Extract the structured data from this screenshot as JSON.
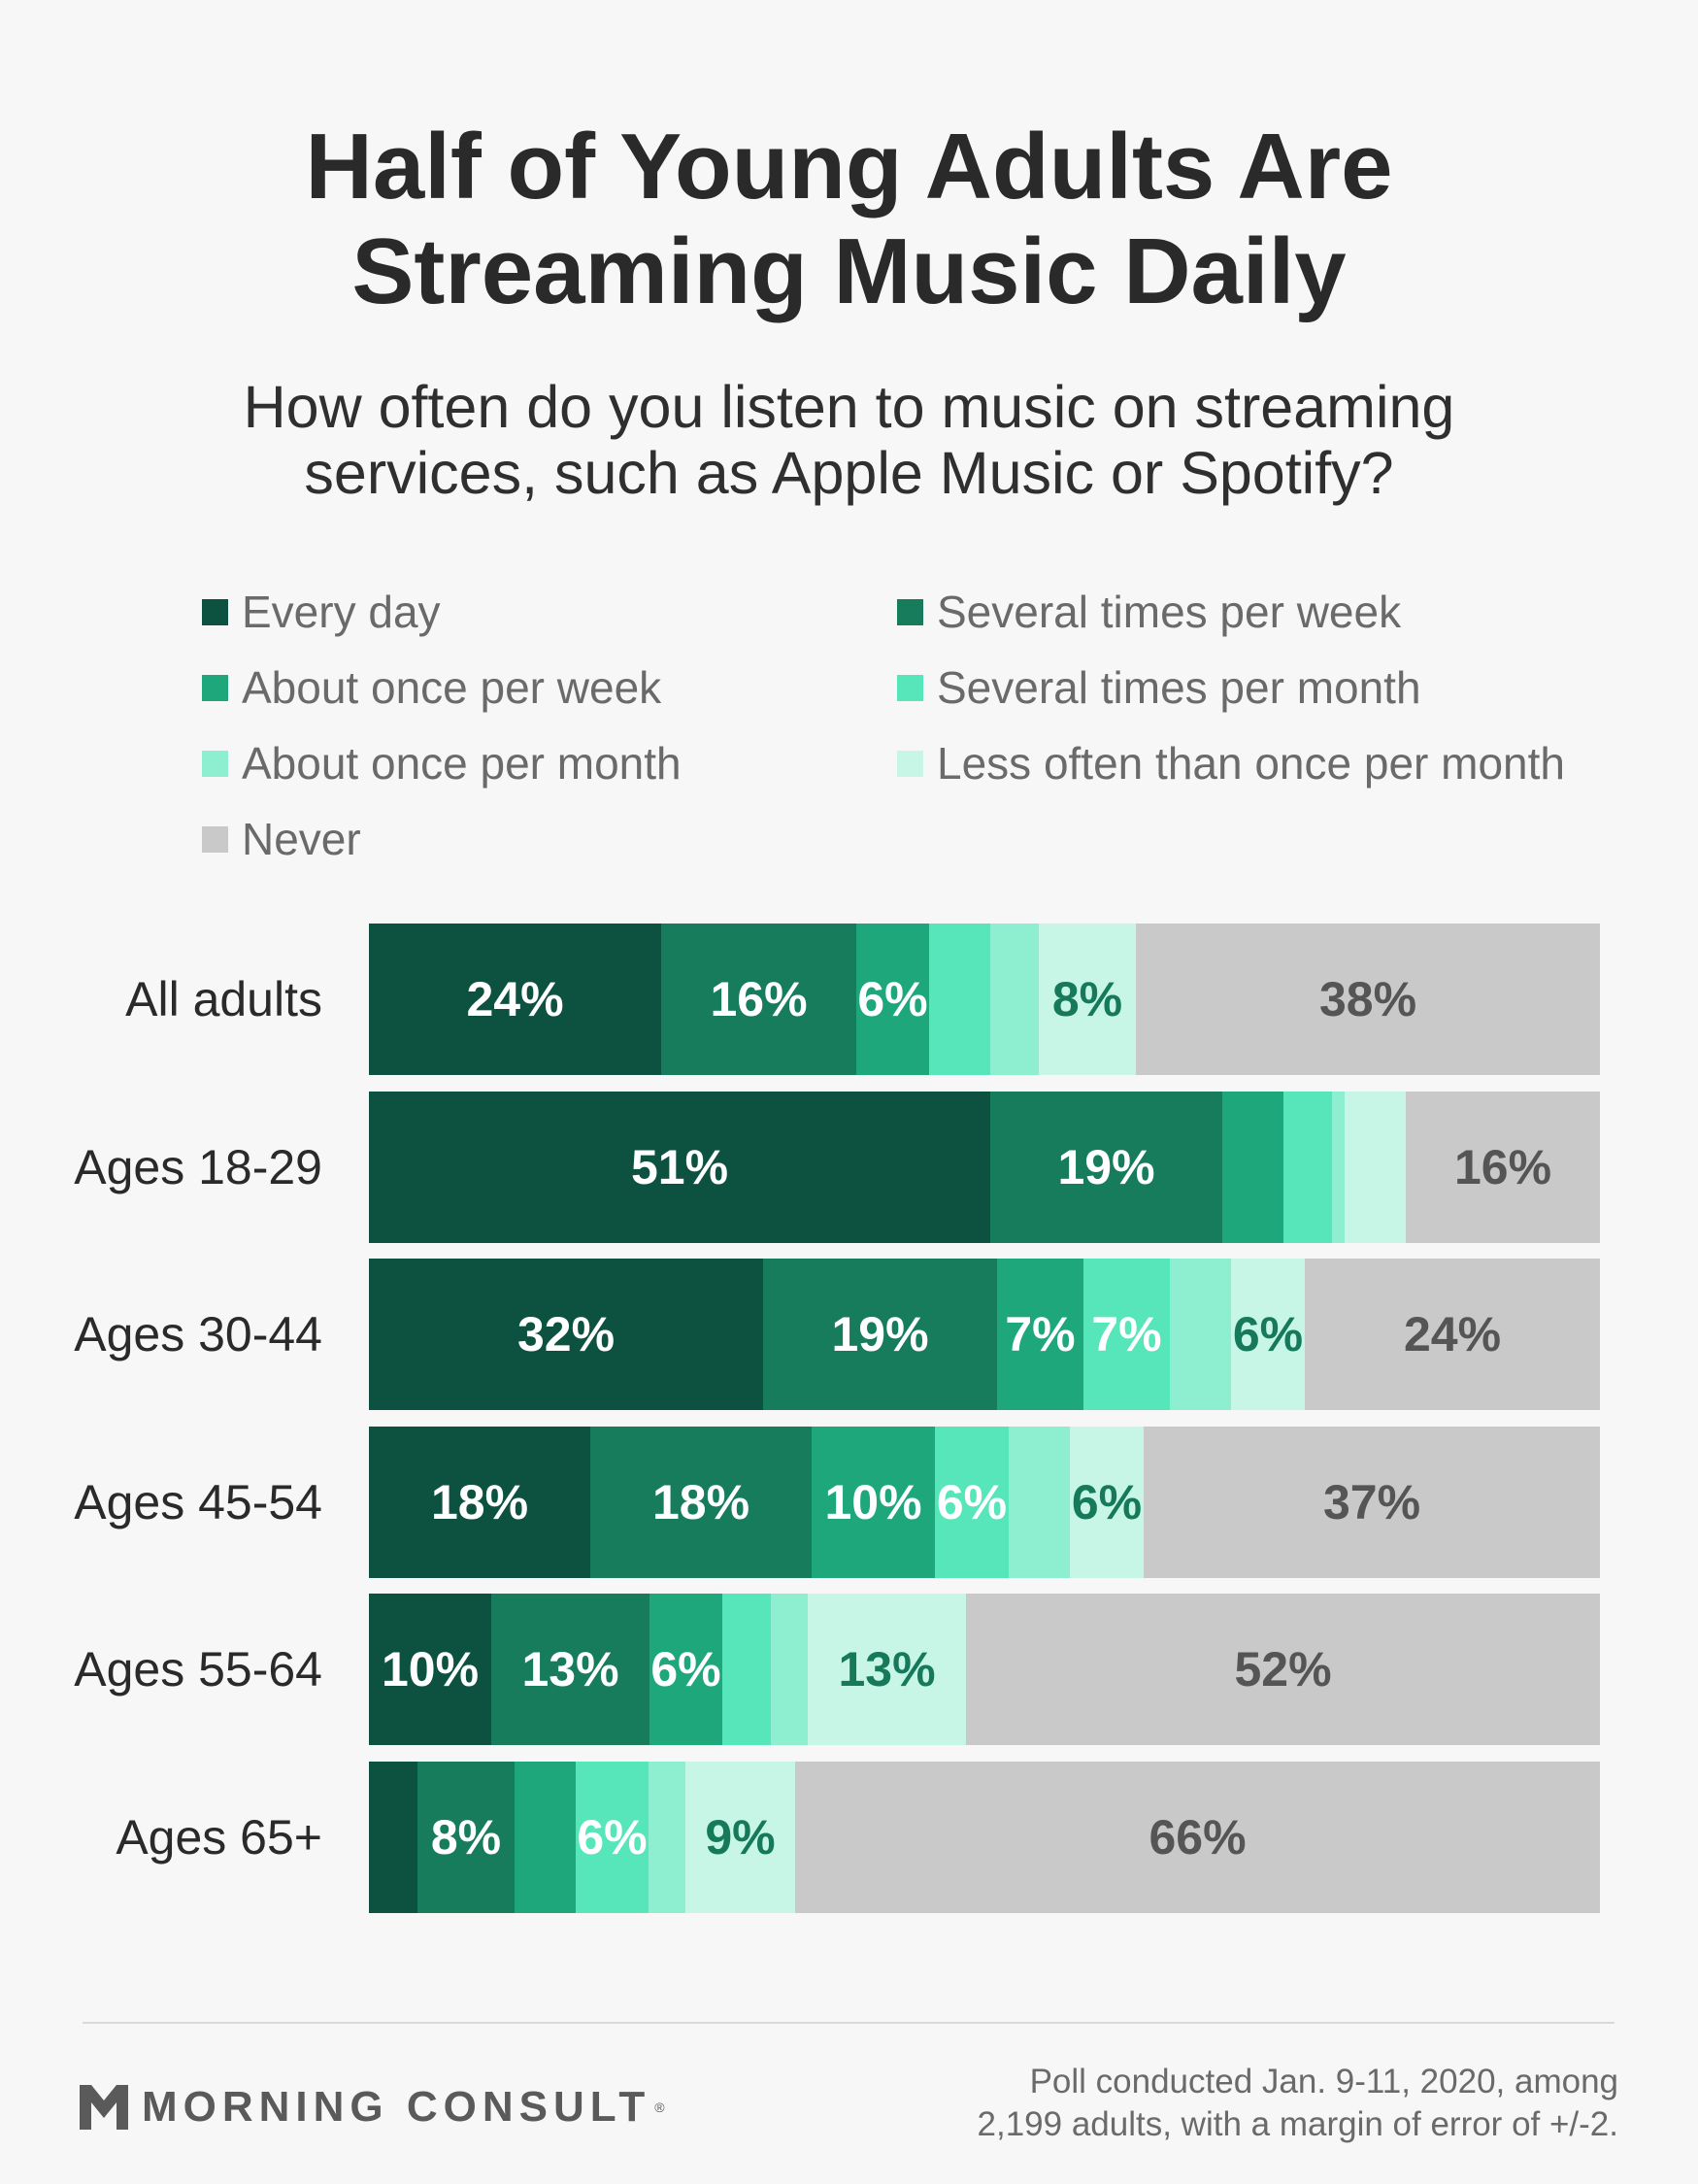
{
  "title_lines": [
    "Half of Young Adults Are",
    "Streaming Music Daily"
  ],
  "subtitle_lines": [
    "How often do you listen to music on streaming",
    "services, such as Apple Music or Spotify?"
  ],
  "colors": {
    "every_day": "#0d5240",
    "several_week": "#167c5c",
    "once_week": "#1da77b",
    "several_month": "#57e6b9",
    "once_month": "#8eefd0",
    "less_often": "#c7f6e7",
    "never": "#c9c9c9",
    "label_white": "#ffffff",
    "label_green": "#16795a",
    "label_gray": "#555555"
  },
  "chart_data": {
    "type": "bar",
    "orientation": "horizontal",
    "stacked": true,
    "title": "Half of Young Adults Are Streaming Music Daily",
    "subtitle": "How often do you listen to music on streaming services, such as Apple Music or Spotify?",
    "legend_position": "top",
    "categories": [
      "All adults",
      "Ages 18-29",
      "Ages 30-44",
      "Ages 45-54",
      "Ages 55-64",
      "Ages 65+"
    ],
    "series": [
      {
        "name": "Every day",
        "color": "#0d5240",
        "label_color": "#ffffff",
        "values": [
          24,
          51,
          32,
          18,
          10,
          4
        ],
        "labels": [
          "24%",
          "51%",
          "32%",
          "18%",
          "10%",
          ""
        ]
      },
      {
        "name": "Several times per week",
        "color": "#167c5c",
        "label_color": "#ffffff",
        "values": [
          16,
          19,
          19,
          18,
          13,
          8
        ],
        "labels": [
          "16%",
          "19%",
          "19%",
          "18%",
          "13%",
          "8%"
        ]
      },
      {
        "name": "About once per week",
        "color": "#1da77b",
        "label_color": "#ffffff",
        "values": [
          6,
          5,
          7,
          10,
          6,
          5
        ],
        "labels": [
          "6%",
          "",
          "7%",
          "10%",
          "6%",
          ""
        ]
      },
      {
        "name": "Several times per month",
        "color": "#57e6b9",
        "label_color": "#ffffff",
        "values": [
          5,
          4,
          7,
          6,
          4,
          6
        ],
        "labels": [
          "",
          "",
          "7%",
          "6%",
          "",
          "6%"
        ]
      },
      {
        "name": "About once per month",
        "color": "#8eefd0",
        "label_color": "#16795a",
        "values": [
          4,
          1,
          5,
          5,
          3,
          3
        ],
        "labels": [
          "",
          "",
          "",
          "",
          "",
          ""
        ]
      },
      {
        "name": "Less often than once per month",
        "color": "#c7f6e7",
        "label_color": "#16795a",
        "values": [
          8,
          5,
          6,
          6,
          13,
          9
        ],
        "labels": [
          "8%",
          "",
          "6%",
          "6%",
          "13%",
          "9%"
        ]
      },
      {
        "name": "Never",
        "color": "#c9c9c9",
        "label_color": "#555555",
        "values": [
          38,
          16,
          24,
          37,
          52,
          66
        ],
        "labels": [
          "38%",
          "16%",
          "24%",
          "37%",
          "52%",
          "66%"
        ]
      }
    ]
  },
  "footer": {
    "logo_text": "MORNING CONSULT",
    "logo_mark": "®",
    "source_lines": [
      "Poll conducted Jan. 9-11, 2020, among",
      "2,199 adults, with a margin of error of +/-2."
    ]
  }
}
